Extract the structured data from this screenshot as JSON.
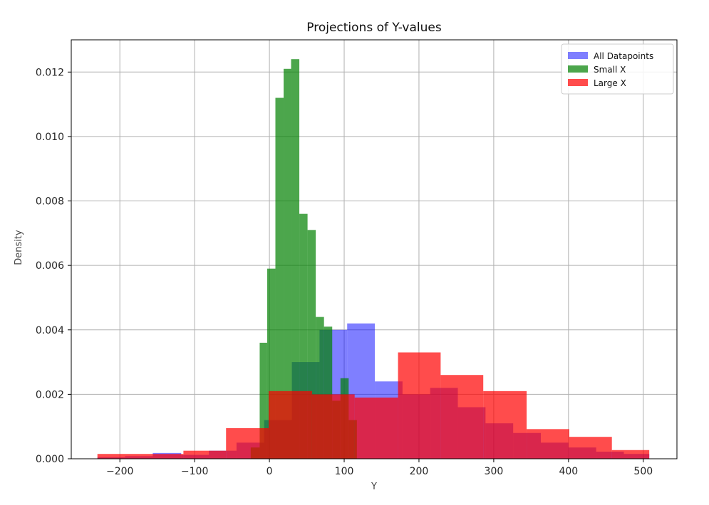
{
  "chart_data": {
    "type": "bar",
    "title": "Projections of Y-values",
    "xlabel": "Y",
    "ylabel": "Density",
    "xlim": [
      -265,
      545
    ],
    "ylim": [
      0,
      0.013
    ],
    "xticks": [
      -200,
      -100,
      0,
      100,
      200,
      300,
      400,
      500
    ],
    "xtick_labels": [
      "−200",
      "−100",
      "0",
      "100",
      "200",
      "300",
      "400",
      "500"
    ],
    "yticks": [
      0,
      0.002,
      0.004,
      0.006,
      0.008,
      0.01,
      0.012
    ],
    "ytick_labels": [
      "0.000",
      "0.002",
      "0.004",
      "0.006",
      "0.008",
      "0.010",
      "0.012"
    ],
    "grid": true,
    "legend_position": "top-right",
    "series": [
      {
        "name": "All Datapoints",
        "color": "#0000ff",
        "opacity": 0.5,
        "edges": [
          -230,
          -193,
          -156,
          -118,
          -81,
          -44,
          -7,
          30,
          67,
          104,
          141,
          178,
          215,
          252,
          289,
          326,
          363,
          400,
          437,
          474,
          508
        ],
        "values": [
          5e-05,
          8e-05,
          0.00018,
          0.00012,
          0.00025,
          0.0005,
          0.0012,
          0.003,
          0.004,
          0.0042,
          0.0024,
          0.002,
          0.0022,
          0.0016,
          0.0011,
          0.0008,
          0.0005,
          0.00035,
          0.00022,
          0.00015
        ]
      },
      {
        "name": "Small X",
        "color": "#008000",
        "opacity": 0.7,
        "edges": [
          -25,
          -13,
          -3,
          8,
          19,
          29,
          40,
          51,
          62,
          73,
          84,
          95,
          106,
          117
        ],
        "values": [
          0.00035,
          0.0036,
          0.0059,
          0.0112,
          0.0121,
          0.0124,
          0.0076,
          0.0071,
          0.0044,
          0.0041,
          0.0018,
          0.0025,
          0.0012
        ]
      },
      {
        "name": "Large X",
        "color": "#ff0000",
        "opacity": 0.7,
        "edges": [
          -230,
          -173,
          -115,
          -58,
          -1,
          57,
          114,
          172,
          229,
          286,
          344,
          401,
          458,
          508
        ],
        "values": [
          0.00015,
          0.00015,
          0.00025,
          0.00095,
          0.0021,
          0.002,
          0.0019,
          0.0033,
          0.0026,
          0.0021,
          0.00092,
          0.00068,
          0.00027
        ]
      }
    ]
  }
}
